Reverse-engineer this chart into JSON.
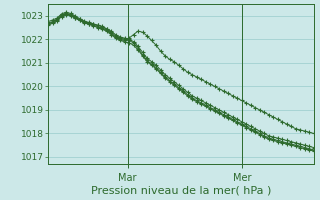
{
  "bg_color": "#cce8e8",
  "grid_color": "#99cccc",
  "line_color": "#2d6a2d",
  "marker": "+",
  "ylim": [
    1016.7,
    1023.5
  ],
  "yticks": [
    1017,
    1018,
    1019,
    1020,
    1021,
    1022,
    1023
  ],
  "xlabel": "Pression niveau de la mer( hPa )",
  "xlabel_color": "#2d6a2d",
  "xlabel_fontsize": 8,
  "ytick_fontsize": 6.5,
  "xtick_fontsize": 7,
  "xtick_labels": [
    "Mar",
    "Mer"
  ],
  "xtick_positions": [
    0.3,
    0.73
  ],
  "num_points": 60,
  "line1": [
    1022.7,
    1022.75,
    1022.85,
    1023.05,
    1023.1,
    1023.05,
    1022.95,
    1022.85,
    1022.75,
    1022.7,
    1022.65,
    1022.6,
    1022.55,
    1022.45,
    1022.35,
    1022.2,
    1022.1,
    1022.05,
    1022.0,
    1021.9,
    1021.7,
    1021.45,
    1021.2,
    1021.05,
    1020.9,
    1020.7,
    1020.5,
    1020.35,
    1020.2,
    1020.05,
    1019.9,
    1019.75,
    1019.6,
    1019.5,
    1019.4,
    1019.3,
    1019.2,
    1019.1,
    1019.0,
    1018.9,
    1018.8,
    1018.7,
    1018.6,
    1018.5,
    1018.4,
    1018.3,
    1018.2,
    1018.1,
    1018.0,
    1017.9,
    1017.85,
    1017.8,
    1017.75,
    1017.7,
    1017.65,
    1017.6,
    1017.55,
    1017.5,
    1017.45,
    1017.4
  ],
  "line_main": [
    1022.75,
    1022.82,
    1022.9,
    1023.08,
    1023.15,
    1023.1,
    1023.0,
    1022.88,
    1022.78,
    1022.72,
    1022.66,
    1022.6,
    1022.54,
    1022.44,
    1022.3,
    1022.15,
    1022.05,
    1022.0,
    1021.95,
    1021.85,
    1021.6,
    1021.35,
    1021.1,
    1020.95,
    1020.8,
    1020.6,
    1020.4,
    1020.25,
    1020.1,
    1019.95,
    1019.8,
    1019.65,
    1019.5,
    1019.4,
    1019.3,
    1019.2,
    1019.1,
    1019.0,
    1018.9,
    1018.8,
    1018.7,
    1018.6,
    1018.5,
    1018.4,
    1018.3,
    1018.2,
    1018.1,
    1018.0,
    1017.9,
    1017.8,
    1017.75,
    1017.7,
    1017.65,
    1017.6,
    1017.55,
    1017.5,
    1017.45,
    1017.4,
    1017.35,
    1017.3
  ],
  "line_bump": [
    1022.65,
    1022.72,
    1022.82,
    1023.0,
    1023.08,
    1023.03,
    1022.92,
    1022.82,
    1022.72,
    1022.66,
    1022.6,
    1022.54,
    1022.48,
    1022.38,
    1022.25,
    1022.1,
    1022.0,
    1021.95,
    1022.05,
    1022.2,
    1022.35,
    1022.3,
    1022.15,
    1021.95,
    1021.75,
    1021.5,
    1021.3,
    1021.15,
    1021.05,
    1020.9,
    1020.75,
    1020.6,
    1020.5,
    1020.4,
    1020.3,
    1020.2,
    1020.1,
    1020.0,
    1019.9,
    1019.8,
    1019.7,
    1019.6,
    1019.5,
    1019.4,
    1019.3,
    1019.2,
    1019.1,
    1019.0,
    1018.9,
    1018.8,
    1018.7,
    1018.6,
    1018.5,
    1018.4,
    1018.3,
    1018.2,
    1018.15,
    1018.1,
    1018.05,
    1018.0
  ],
  "line_low": [
    1022.6,
    1022.68,
    1022.78,
    1022.96,
    1023.05,
    1023.0,
    1022.9,
    1022.8,
    1022.7,
    1022.64,
    1022.58,
    1022.5,
    1022.44,
    1022.34,
    1022.2,
    1022.05,
    1021.95,
    1021.9,
    1021.85,
    1021.75,
    1021.55,
    1021.3,
    1021.05,
    1020.9,
    1020.75,
    1020.55,
    1020.35,
    1020.2,
    1020.05,
    1019.9,
    1019.75,
    1019.6,
    1019.45,
    1019.35,
    1019.25,
    1019.15,
    1019.05,
    1018.95,
    1018.85,
    1018.75,
    1018.65,
    1018.55,
    1018.45,
    1018.35,
    1018.25,
    1018.15,
    1018.05,
    1017.95,
    1017.85,
    1017.75,
    1017.7,
    1017.65,
    1017.6,
    1017.55,
    1017.5,
    1017.45,
    1017.4,
    1017.35,
    1017.3,
    1017.25
  ]
}
